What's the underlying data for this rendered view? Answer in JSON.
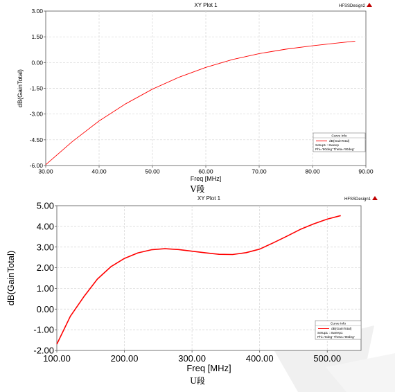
{
  "chart_data": [
    {
      "type": "line",
      "title": "XY Plot 1",
      "design_label": "HFSSDesign2",
      "xlabel": "Freq [MHz]",
      "ylabel": "dB(GainTotal)",
      "xlim": [
        30,
        90
      ],
      "ylim": [
        -6,
        3
      ],
      "xticks": [
        "30.00",
        "40.00",
        "50.00",
        "60.00",
        "70.00",
        "80.00",
        "90.00"
      ],
      "yticks": [
        "-6.00",
        "-4.50",
        "-3.00",
        "-1.50",
        "0.00",
        "1.50",
        "3.00"
      ],
      "grid": true,
      "legend_position": "bottom-right",
      "legend": {
        "header": "Curve Info",
        "entry": "dB(GainTotal)",
        "setup": "Setup1 : Sweep",
        "params": "Phi='90deg' Theta='90deg'"
      },
      "series": [
        {
          "name": "dB(GainTotal)",
          "color": "#ff0000",
          "x": [
            30,
            35,
            40,
            45,
            50,
            55,
            60,
            65,
            70,
            75,
            80,
            85,
            88
          ],
          "y": [
            -5.95,
            -4.6,
            -3.4,
            -2.4,
            -1.55,
            -0.85,
            -0.28,
            0.18,
            0.52,
            0.78,
            0.98,
            1.15,
            1.25
          ]
        }
      ]
    },
    {
      "type": "line",
      "title": "XY Plot 1",
      "design_label": "HFSSDesign1",
      "xlabel": "Freq [MHz]",
      "ylabel": "dB(GainTotal)",
      "xlim": [
        100,
        550
      ],
      "ylim": [
        -2,
        5
      ],
      "xticks": [
        "100.00",
        "200.00",
        "300.00",
        "400.00",
        "500.00"
      ],
      "yticks": [
        "-2.00",
        "-1.00",
        "0.00",
        "1.00",
        "2.00",
        "3.00",
        "4.00",
        "5.00"
      ],
      "grid": true,
      "legend_position": "bottom-right",
      "legend": {
        "header": "Curve Info",
        "entry": "dB(GainTotal)",
        "setup": "Setup1 : Sweep1",
        "params": "Phi='0deg' Theta='90deg'"
      },
      "series": [
        {
          "name": "dB(GainTotal)",
          "color": "#ff0000",
          "x": [
            100,
            120,
            140,
            160,
            180,
            200,
            220,
            240,
            260,
            280,
            300,
            320,
            340,
            360,
            380,
            400,
            420,
            440,
            460,
            480,
            500,
            520
          ],
          "y": [
            -1.7,
            -0.35,
            0.6,
            1.45,
            2.05,
            2.45,
            2.72,
            2.87,
            2.92,
            2.88,
            2.8,
            2.72,
            2.65,
            2.64,
            2.73,
            2.9,
            3.2,
            3.52,
            3.85,
            4.12,
            4.35,
            4.52
          ]
        }
      ]
    }
  ],
  "captions": [
    "V段",
    "U段"
  ]
}
